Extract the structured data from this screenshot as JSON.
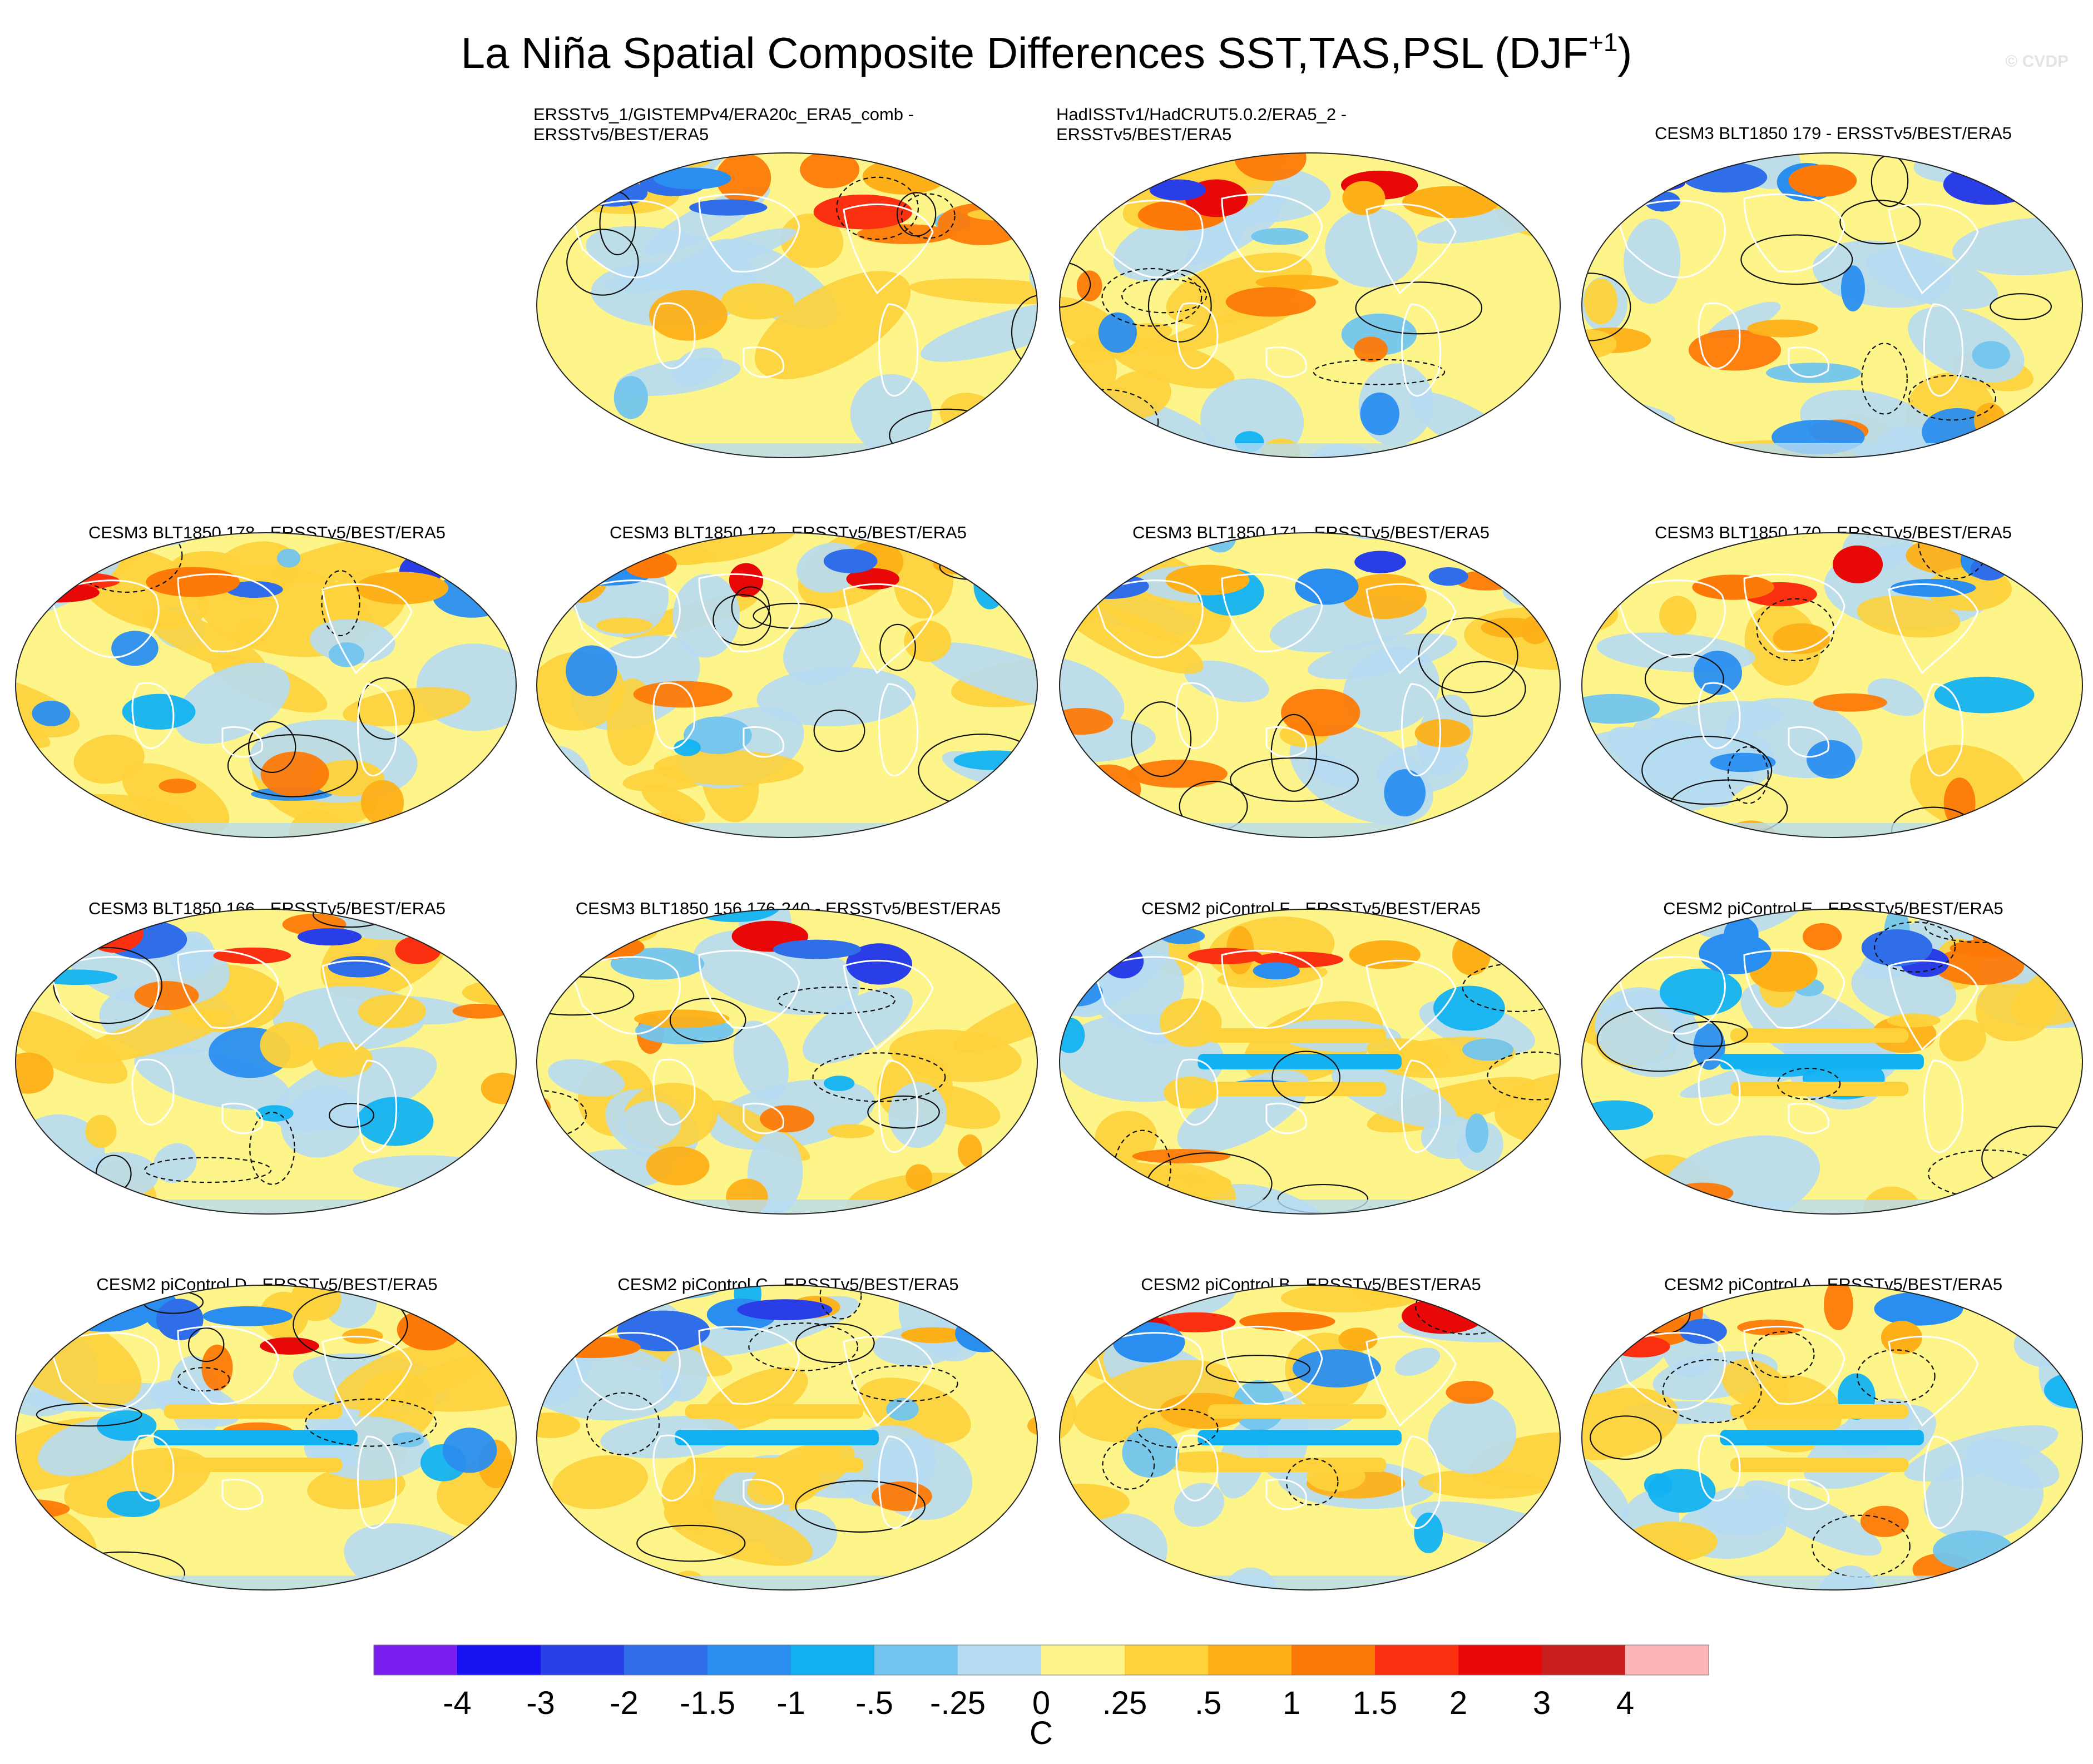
{
  "title_main": "La Niña Spatial Composite Differences SST,TAS,PSL (DJF",
  "title_sup": "+1",
  "title_end": ")",
  "watermark": "© CVDP",
  "panels": [
    {
      "line1": "ERSSTv5_1/GISTEMPv4/ERA20c_ERA5_comb -",
      "line2": "ERSSTv5/BEST/ERA5"
    },
    {
      "line1": "HadISSTv1/HadCRUT5.0.2/ERA5_2 -",
      "line2": "ERSSTv5/BEST/ERA5"
    },
    {
      "line1": "CESM3 BLT1850 179 - ERSSTv5/BEST/ERA5",
      "line2": ""
    },
    {
      "line1": "CESM3 BLT1850 178 - ERSSTv5/BEST/ERA5",
      "line2": ""
    },
    {
      "line1": "CESM3 BLT1850 172 - ERSSTv5/BEST/ERA5",
      "line2": ""
    },
    {
      "line1": "CESM3 BLT1850 171 - ERSSTv5/BEST/ERA5",
      "line2": ""
    },
    {
      "line1": "CESM3 BLT1850 170 - ERSSTv5/BEST/ERA5",
      "line2": ""
    },
    {
      "line1": "CESM3 BLT1850 166 - ERSSTv5/BEST/ERA5",
      "line2": ""
    },
    {
      "line1": "CESM3 BLT1850 156 176-240 - ERSSTv5/BEST/ERA5",
      "line2": ""
    },
    {
      "line1": "CESM2 piControl F - ERSSTv5/BEST/ERA5",
      "line2": ""
    },
    {
      "line1": "CESM2 piControl E - ERSSTv5/BEST/ERA5",
      "line2": ""
    },
    {
      "line1": "CESM2 piControl D - ERSSTv5/BEST/ERA5",
      "line2": ""
    },
    {
      "line1": "CESM2 piControl C - ERSSTv5/BEST/ERA5",
      "line2": ""
    },
    {
      "line1": "CESM2 piControl B - ERSSTv5/BEST/ERA5",
      "line2": ""
    },
    {
      "line1": "CESM2 piControl A - ERSSTv5/BEST/ERA5",
      "line2": ""
    }
  ],
  "chart_data": {
    "type": "heatmap",
    "projection": "Robinson-like global maps, shaded SST/TAS differences with PSL contours",
    "colorbar": {
      "label": "C",
      "levels": [
        "-4",
        "-3",
        "-2",
        "-1.5",
        "-1",
        "-.5",
        "-.25",
        "0",
        ".25",
        ".5",
        "1",
        "1.5",
        "2",
        "3",
        "4"
      ],
      "colors": [
        "#7a1ff0",
        "#1812f2",
        "#2a3ee8",
        "#2f6ee8",
        "#2a8ef0",
        "#12b2f2",
        "#72c4ee",
        "#b6dcf2",
        "#fdf58a",
        "#fdd23a",
        "#fdb018",
        "#fd7a08",
        "#fa3010",
        "#e80808",
        "#c81e1e",
        "#fcb6b6"
      ]
    },
    "notes": "Each map: La Niña composite (DJF+1) difference from ERSSTv5/BEST/ERA5 observations; warm colors positive, cool colors negative; black contours PSL (dashed negative)."
  }
}
